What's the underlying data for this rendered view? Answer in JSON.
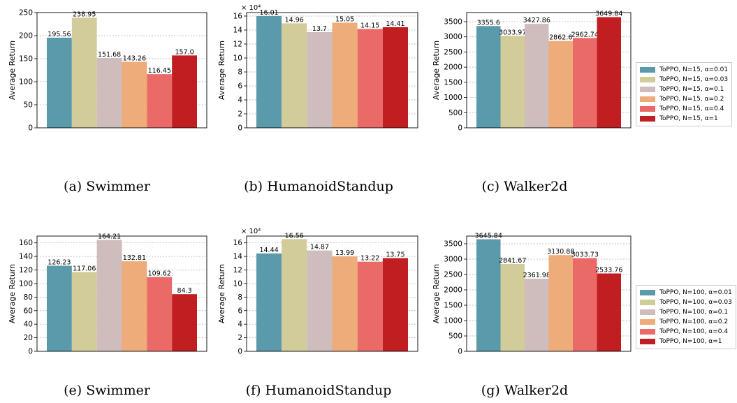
{
  "chart_data": [
    {
      "id": "a",
      "type": "bar",
      "caption": "(a) Swimmer",
      "ylabel": "Average Return",
      "multiplier": "",
      "ylim": [
        0,
        250
      ],
      "yticks": [
        0,
        50,
        100,
        150,
        200,
        250
      ],
      "values": [
        195.56,
        238.95,
        151.68,
        143.26,
        116.45,
        157.0
      ],
      "labels": [
        "195.56",
        "238.95",
        "151.68",
        "143.26",
        "116.45",
        "157.0"
      ]
    },
    {
      "id": "b",
      "type": "bar",
      "caption": "(b) HumanoidStandup",
      "ylabel": "Average Return",
      "multiplier": "× 10⁴",
      "ylim": [
        0,
        16.5
      ],
      "yticks": [
        0,
        2,
        4,
        6,
        8,
        10,
        12,
        14,
        16
      ],
      "values": [
        16.01,
        14.96,
        13.7,
        15.05,
        14.15,
        14.41
      ],
      "labels": [
        "16.01",
        "14.96",
        "13.7",
        "15.05",
        "14.15",
        "14.41"
      ]
    },
    {
      "id": "c",
      "type": "bar",
      "caption": "(c) Walker2d",
      "ylabel": "Average Return",
      "multiplier": "",
      "ylim": [
        0,
        3800
      ],
      "yticks": [
        0,
        500,
        1000,
        1500,
        2000,
        2500,
        3000,
        3500
      ],
      "values": [
        3355.6,
        3033.97,
        3427.86,
        2862.6,
        2962.74,
        3649.84
      ],
      "labels": [
        "3355.6",
        "3033.97",
        "3427.86",
        "2862.6",
        "2962.74",
        "3649.84"
      ]
    },
    {
      "id": "e",
      "type": "bar",
      "caption": "(e) Swimmer",
      "ylabel": "Average Return",
      "multiplier": "",
      "ylim": [
        0,
        170
      ],
      "yticks": [
        0,
        20,
        40,
        60,
        80,
        100,
        120,
        140,
        160
      ],
      "values": [
        126.23,
        117.06,
        164.21,
        132.81,
        109.62,
        84.3
      ],
      "labels": [
        "126.23",
        "117.06",
        "164.21",
        "132.81",
        "109.62",
        "84.3"
      ]
    },
    {
      "id": "f",
      "type": "bar",
      "caption": "(f) HumanoidStandup",
      "ylabel": "Average Return",
      "multiplier": "× 10⁴",
      "ylim": [
        0,
        17
      ],
      "yticks": [
        0,
        2,
        4,
        6,
        8,
        10,
        12,
        14,
        16
      ],
      "values": [
        14.44,
        16.56,
        14.87,
        13.99,
        13.22,
        13.75
      ],
      "labels": [
        "14.44",
        "16.56",
        "14.87",
        "13.99",
        "13.22",
        "13.75"
      ]
    },
    {
      "id": "g",
      "type": "bar",
      "caption": "(g) Walker2d",
      "ylabel": "Average Return",
      "multiplier": "",
      "ylim": [
        0,
        3750
      ],
      "yticks": [
        0,
        500,
        1000,
        1500,
        2000,
        2500,
        3000,
        3500
      ],
      "values": [
        3645.84,
        2841.67,
        2361.98,
        3130.88,
        3033.73,
        2533.76
      ],
      "labels": [
        "3645.84",
        "2841.67",
        "2361.98",
        "3130.88",
        "3033.73",
        "2533.76"
      ]
    }
  ],
  "series_colors": [
    "#5a9aab",
    "#d2cc9b",
    "#cfbcbc",
    "#eeac7b",
    "#ea6a68",
    "#c01e20"
  ],
  "legends": [
    {
      "id": "top",
      "entries": [
        "ToPPO, N=15, α=0.01",
        "ToPPO, N=15, α=0.03",
        "ToPPO, N=15, α=0.1",
        "ToPPO, N=15, α=0.2",
        "ToPPO, N=15, α=0.4",
        "ToPPO, N=15, α=1"
      ]
    },
    {
      "id": "bottom",
      "entries": [
        "ToPPO, N=100, α=0.01",
        "ToPPO, N=100, α=0.03",
        "ToPPO, N=100, α=0.1",
        "ToPPO, N=100, α=0.2",
        "ToPPO, N=100, α=0.4",
        "ToPPO, N=100, α=1"
      ]
    }
  ]
}
